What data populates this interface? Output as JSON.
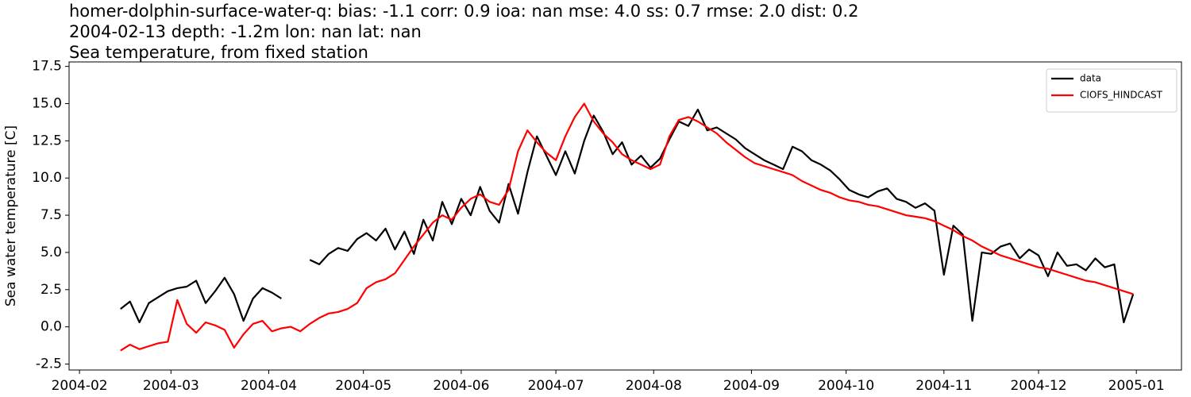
{
  "chart_data": {
    "type": "line",
    "title": "homer-dolphin-surface-water-q: bias: -1.1  corr: 0.9  ioa: nan  mse: 4.0  ss: 0.7  rmse: 2.0  dist: 0.2",
    "subtitle": "2004-02-13 depth: -1.2m lon: nan lat: nan",
    "subtitle2": "Sea temperature, from fixed station",
    "ylabel": "Sea water temperature [C]",
    "x": [
      44,
      47,
      50,
      53,
      56,
      59,
      62,
      65,
      68,
      71,
      74,
      77,
      80,
      83,
      86,
      89,
      92,
      95,
      98,
      101,
      104,
      107,
      110,
      113,
      116,
      119,
      122,
      125,
      128,
      131,
      134,
      137,
      140,
      143,
      146,
      149,
      152,
      155,
      158,
      161,
      164,
      167,
      170,
      173,
      176,
      179,
      182,
      185,
      188,
      191,
      194,
      197,
      200,
      203,
      206,
      209,
      212,
      215,
      218,
      221,
      224,
      227,
      230,
      233,
      236,
      239,
      242,
      245,
      248,
      251,
      254,
      257,
      260,
      263,
      266,
      269,
      272,
      275,
      278,
      281,
      284,
      287,
      290,
      293,
      296,
      299,
      302,
      305,
      308,
      311,
      314,
      317,
      320,
      323,
      326,
      329,
      332,
      335,
      338,
      341,
      344,
      347,
      350,
      353,
      356,
      359,
      362,
      365
    ],
    "series": [
      {
        "name": "data",
        "color": "#000000",
        "values": [
          1.2,
          1.7,
          0.3,
          1.6,
          2.0,
          2.4,
          2.6,
          2.7,
          3.1,
          1.6,
          2.4,
          3.3,
          2.2,
          0.4,
          1.9,
          2.6,
          2.3,
          1.9,
          null,
          null,
          4.5,
          4.2,
          4.9,
          5.3,
          5.1,
          5.9,
          6.3,
          5.8,
          6.6,
          5.2,
          6.4,
          4.9,
          7.2,
          5.8,
          8.4,
          6.9,
          8.6,
          7.5,
          9.4,
          7.8,
          7.0,
          9.6,
          7.6,
          10.4,
          12.8,
          11.5,
          10.2,
          11.8,
          10.3,
          12.5,
          14.2,
          13.1,
          11.6,
          12.4,
          10.9,
          11.5,
          10.7,
          11.3,
          12.6,
          13.8,
          13.5,
          14.6,
          13.2,
          13.4,
          13.0,
          12.6,
          12.0,
          11.6,
          11.2,
          10.9,
          10.6,
          12.1,
          11.8,
          11.2,
          10.9,
          10.5,
          9.9,
          9.2,
          8.9,
          8.7,
          9.1,
          9.3,
          8.6,
          8.4,
          8.0,
          8.3,
          7.8,
          3.5,
          6.8,
          6.2,
          0.4,
          5.0,
          4.9,
          5.4,
          5.6,
          4.6,
          5.2,
          4.8,
          3.4,
          5.0,
          4.1,
          4.2,
          3.8,
          4.6,
          4.0,
          4.2,
          0.3,
          2.2
        ]
      },
      {
        "name": "CIOFS_HINDCAST",
        "color": "#ff0000",
        "values": [
          -1.6,
          -1.2,
          -1.5,
          -1.3,
          -1.1,
          -1.0,
          1.8,
          0.2,
          -0.4,
          0.3,
          0.1,
          -0.2,
          -1.4,
          -0.5,
          0.2,
          0.4,
          -0.3,
          -0.1,
          0.0,
          -0.3,
          0.2,
          0.6,
          0.9,
          1.0,
          1.2,
          1.6,
          2.6,
          3.0,
          3.2,
          3.6,
          4.5,
          5.4,
          6.2,
          7.0,
          7.5,
          7.2,
          8.0,
          8.6,
          8.9,
          8.4,
          8.2,
          9.2,
          11.8,
          13.2,
          12.4,
          11.7,
          11.2,
          12.8,
          14.1,
          15.0,
          13.8,
          13.0,
          12.4,
          11.6,
          11.2,
          10.9,
          10.6,
          10.9,
          12.8,
          13.9,
          14.1,
          13.8,
          13.4,
          13.0,
          12.4,
          11.9,
          11.4,
          11.0,
          10.8,
          10.6,
          10.4,
          10.2,
          9.8,
          9.5,
          9.2,
          9.0,
          8.7,
          8.5,
          8.4,
          8.2,
          8.1,
          7.9,
          7.7,
          7.5,
          7.4,
          7.3,
          7.1,
          6.8,
          6.5,
          6.1,
          5.8,
          5.4,
          5.1,
          4.8,
          4.6,
          4.4,
          4.2,
          4.0,
          3.9,
          3.7,
          3.5,
          3.3,
          3.1,
          3.0,
          2.8,
          2.6,
          2.4,
          2.2
        ]
      }
    ],
    "xlim": [
      27.7,
      380.3
    ],
    "xticks": [
      {
        "value": 31,
        "label": "2004-02"
      },
      {
        "value": 60,
        "label": "2004-03"
      },
      {
        "value": 91,
        "label": "2004-04"
      },
      {
        "value": 121,
        "label": "2004-05"
      },
      {
        "value": 152,
        "label": "2004-06"
      },
      {
        "value": 182,
        "label": "2004-07"
      },
      {
        "value": 213,
        "label": "2004-08"
      },
      {
        "value": 244,
        "label": "2004-09"
      },
      {
        "value": 274,
        "label": "2004-10"
      },
      {
        "value": 305,
        "label": "2004-11"
      },
      {
        "value": 335,
        "label": "2004-12"
      },
      {
        "value": 366,
        "label": "2005-01"
      }
    ],
    "ylim": [
      -2.9,
      17.8
    ],
    "yticks": [
      -2.5,
      {
        "value": 0,
        "label": "0.0"
      },
      2.5,
      {
        "value": 5,
        "label": "5.0"
      },
      7.5,
      {
        "value": 10,
        "label": "10.0"
      },
      12.5,
      {
        "value": 15,
        "label": "15.0"
      },
      17.5
    ],
    "legend": "upper right"
  }
}
